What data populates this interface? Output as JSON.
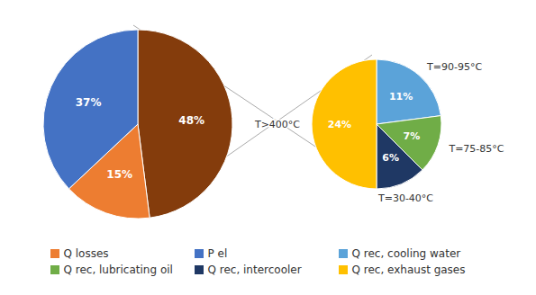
{
  "chart_data": [
    {
      "type": "pie",
      "categories": [
        null,
        "Q losses",
        "P el"
      ],
      "values": [
        48,
        15,
        37
      ],
      "value_labels": [
        "48%",
        "15%",
        "37%"
      ],
      "colors": [
        "#843C0C",
        "#ED7D31",
        "#4472C4"
      ],
      "data_labels": true,
      "legend": "bottom"
    },
    {
      "type": "pie",
      "categories": [
        "Q rec, cooling water",
        "Q rec, lubricating oil",
        "Q rec, intercooler",
        "Q rec, exhaust gases"
      ],
      "values": [
        11,
        7,
        6,
        24
      ],
      "value_labels": [
        "11%",
        "7%",
        "6%",
        "24%"
      ],
      "colors": [
        "#5BA3D9",
        "#70AD47",
        "#1F3864",
        "#FFC000"
      ],
      "data_labels": true,
      "annotations": [
        "T=90-95°C",
        "T=75-85°C",
        "T=30-40°C",
        "T>400°C"
      ]
    }
  ]
}
